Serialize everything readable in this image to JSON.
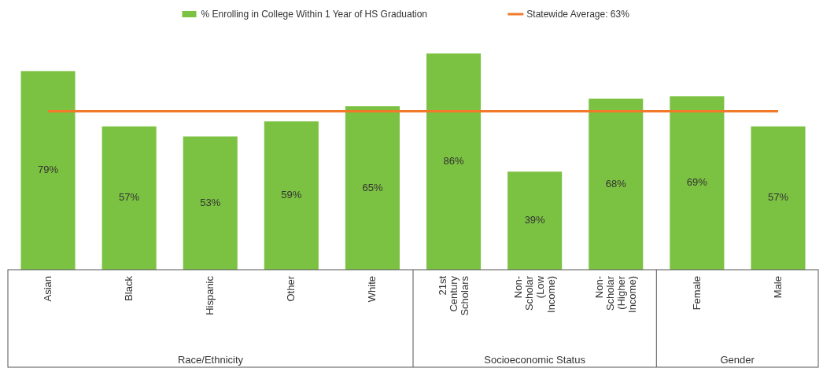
{
  "chart_data": {
    "type": "bar",
    "categories": [
      "Asian",
      "Black",
      "Hispanic",
      "Other",
      "White",
      "21st Century Scholars",
      "Non-Scholar (Low Income)",
      "Non-Scholar (Higher Income)",
      "Female",
      "Male"
    ],
    "series": [
      {
        "name": "% Enrolling in College Within 1 Year of HS Graduation",
        "color": "#7cc242",
        "values": [
          79,
          57,
          53,
          59,
          65,
          86,
          39,
          68,
          69,
          57
        ],
        "value_labels": [
          "79%",
          "57%",
          "53%",
          "59%",
          "65%",
          "86%",
          "39%",
          "68%",
          "69%",
          "57%"
        ]
      }
    ],
    "ref_lines": [
      {
        "axis": "y",
        "value": 63,
        "label": "Statewide Average: 63%",
        "color": "#f07a2a"
      }
    ],
    "annotations": [
      "Race/Ethnicity",
      "Socioeconomic Status",
      "Gender"
    ],
    "legend": "top"
  }
}
